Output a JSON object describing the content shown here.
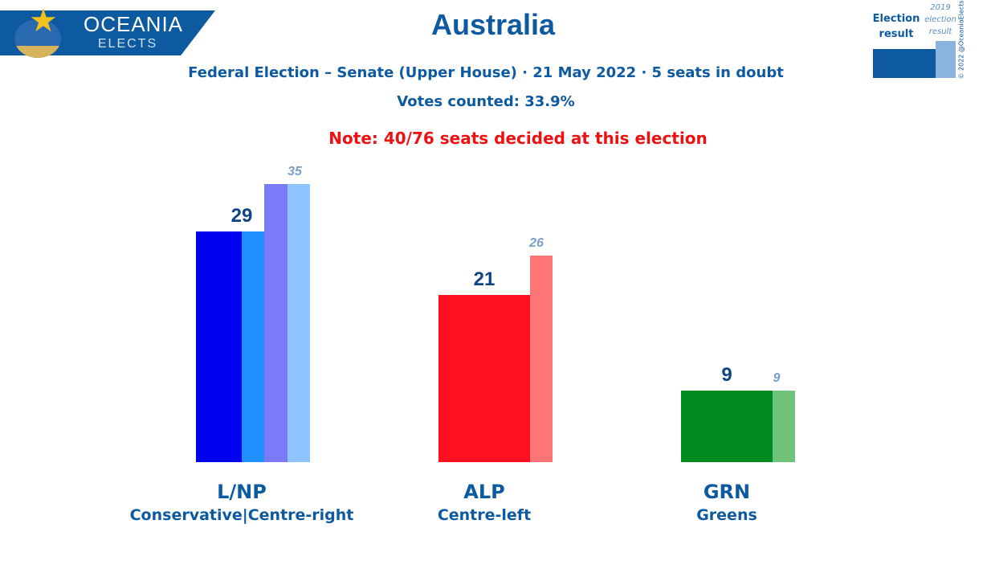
{
  "logo": {
    "title": "OCEANIA",
    "subtitle": "ELECTS"
  },
  "header": {
    "title": "Australia",
    "subtitle": "Federal Election – Senate (Upper House) · 21 May 2022 · 5 seats in doubt",
    "votes_counted": "Votes counted: 33.9%",
    "note": "Note: 40/76 seats decided at this election"
  },
  "legend": {
    "current_label": "Election result",
    "previous_label": "2019 election result",
    "current_color": "#0d5aa0",
    "previous_color": "#8ab4de"
  },
  "copyright": "© 2022 @OceaniaElects",
  "chart_data": {
    "type": "bar",
    "ylim": [
      0,
      35
    ],
    "categories": [
      "L/NP",
      "ALP",
      "GRN"
    ],
    "sublabels": [
      "Conservative|Centre-right",
      "Centre-left",
      "Greens"
    ],
    "series": [
      {
        "name": "Election result",
        "values": [
          29,
          21,
          9
        ]
      },
      {
        "name": "2019 election result",
        "values": [
          35,
          26,
          9
        ]
      }
    ],
    "lnp_segments": [
      {
        "color": "#0000ee",
        "value": 29
      },
      {
        "color": "#1e90ff",
        "value": 29
      },
      {
        "color": "#7b7bfa",
        "value": 35
      }
    ],
    "colors": {
      "lnp_previous": "#8ec4ff",
      "alp_current": "#ff1020",
      "alp_previous": "#ff7474",
      "grn_current": "#008c1e",
      "grn_previous": "#70c47a"
    }
  }
}
